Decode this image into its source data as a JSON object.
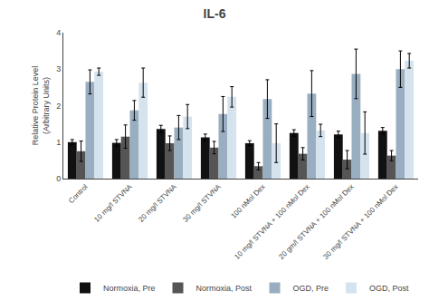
{
  "chart_data": {
    "type": "bar",
    "title": "IL-6",
    "ylabel": "Relative Protein Level\n(Arbitrary Units)",
    "categories": [
      "Control",
      "10 mg/l STVNA",
      "20 mg/l STVNA",
      "30 mg/l STVNA",
      "100 nMol Dex",
      "10 mg/l STVNA + 100 nMol Dex",
      "20 gm/l STVNA + 100 nMol Dex",
      "30 mg/l STVNA + 100 nMol Dex"
    ],
    "series": [
      {
        "name": "Normoxia, Pre",
        "color": "#111111",
        "values": [
          1.0,
          0.98,
          1.36,
          1.13,
          0.97,
          1.25,
          1.21,
          1.31
        ],
        "errors": [
          0.07,
          0.09,
          0.1,
          0.09,
          0.07,
          0.09,
          0.09,
          0.09
        ]
      },
      {
        "name": "Normoxia, Post",
        "color": "#555555",
        "values": [
          0.75,
          1.15,
          0.97,
          0.85,
          0.34,
          0.68,
          0.52,
          0.63
        ],
        "errors": [
          0.28,
          0.32,
          0.2,
          0.17,
          0.1,
          0.17,
          0.25,
          0.14
        ]
      },
      {
        "name": "OGD, Pre",
        "color": "#99aec0",
        "values": [
          2.65,
          1.87,
          1.4,
          1.77,
          2.18,
          2.33,
          2.87,
          3.0
        ],
        "errors": [
          0.33,
          0.27,
          0.33,
          0.48,
          0.53,
          0.63,
          0.68,
          0.5
        ]
      },
      {
        "name": "OGD, Post",
        "color": "#d5e3ee",
        "values": [
          2.93,
          2.63,
          1.7,
          2.24,
          0.97,
          1.32,
          1.25,
          3.23
        ],
        "errors": [
          0.1,
          0.4,
          0.33,
          0.28,
          0.53,
          0.17,
          0.58,
          0.2
        ]
      }
    ],
    "ylim": [
      0,
      4
    ],
    "yticks": [
      0,
      1,
      2,
      3,
      4
    ],
    "grid": false,
    "legend": "bottom"
  }
}
